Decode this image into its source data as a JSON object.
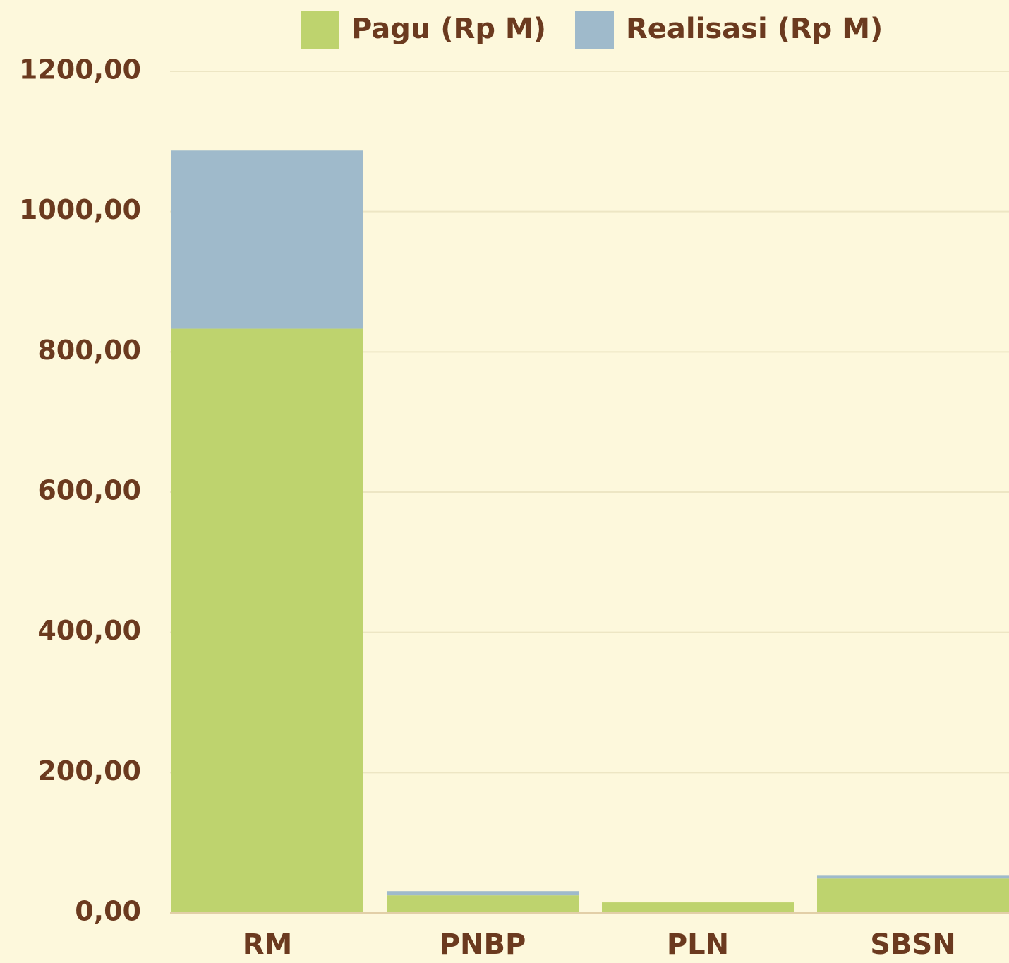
{
  "chart_data": {
    "type": "stacked_bar",
    "categories": [
      "RM",
      "PNBP",
      "PLN",
      "SBSN"
    ],
    "series": [
      {
        "name": "Pagu (Rp M)",
        "color": "#bed36e",
        "values": [
          833,
          25,
          15,
          49
        ]
      },
      {
        "name": "Realisasi (Rp M)",
        "color": "#9fbacb",
        "values": [
          254,
          6,
          0,
          4
        ]
      }
    ],
    "ylim": [
      0,
      1200
    ],
    "yticks": [
      {
        "value": 0,
        "label": "0,00"
      },
      {
        "value": 200,
        "label": "200,00"
      },
      {
        "value": 400,
        "label": "400,00"
      },
      {
        "value": 600,
        "label": "600,00"
      },
      {
        "value": 800,
        "label": "800,00"
      },
      {
        "value": 1000,
        "label": "1000,00"
      },
      {
        "value": 1200,
        "label": "1200,00"
      }
    ],
    "grid": true
  }
}
